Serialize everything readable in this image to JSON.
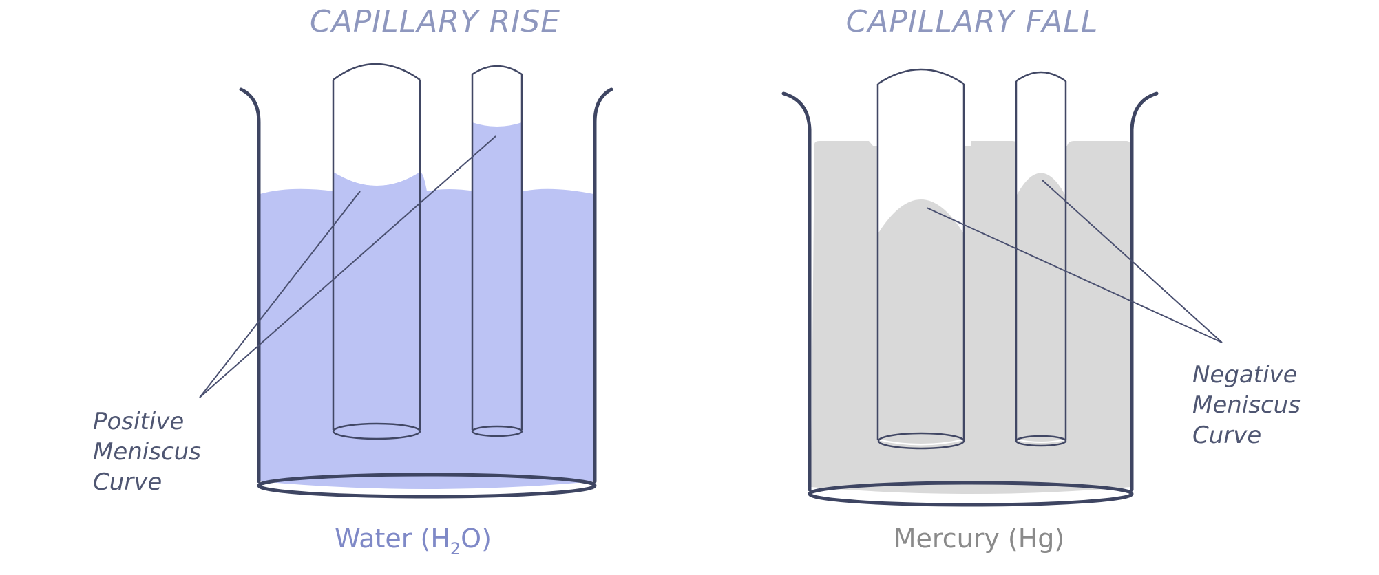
{
  "panels": {
    "rise": {
      "title": "CAPILLARY RISE",
      "liquid_label": "Water (H",
      "liquid_sub": "2",
      "liquid_end": "O)",
      "annotation": [
        "Positive",
        "Meniscus",
        "Curve"
      ]
    },
    "fall": {
      "title": "CAPILLARY FALL",
      "liquid_label": "Mercury (Hg)",
      "annotation": [
        "Negative",
        "Meniscus",
        "Curve"
      ]
    }
  },
  "colors": {
    "water": "#bcc3f4",
    "mercury": "#d9d9d9",
    "outline": "#3e4562",
    "title": "#8e97be",
    "water_label": "#7f89c7",
    "mercury_label": "#8a8a8a"
  }
}
